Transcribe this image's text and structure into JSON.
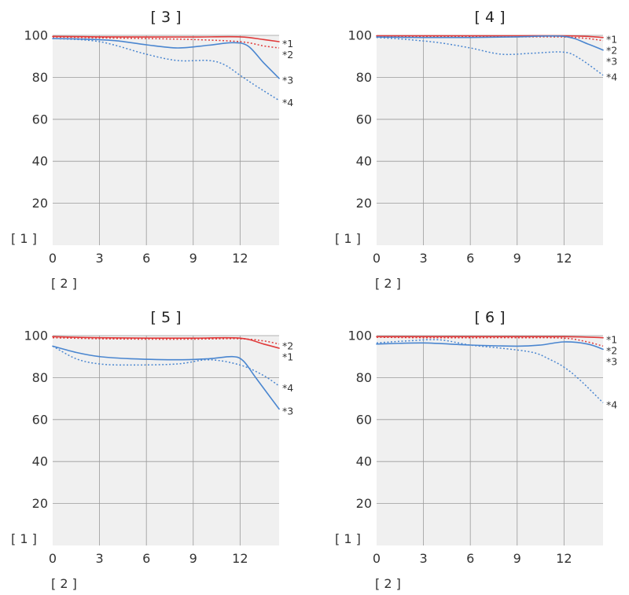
{
  "colors": {
    "red": "#e03a3a",
    "blue": "#4a86d0",
    "plot_bg": "#f0f0f0",
    "grid": "#9a9a9a"
  },
  "chart_data": [
    {
      "type": "line",
      "title": "[ 3 ]",
      "xlabel": "[ 2 ]",
      "ylabel": "[ 1 ]",
      "xlim": [
        0,
        14.5
      ],
      "ylim": [
        0,
        100
      ],
      "xticks": [
        "0",
        "3",
        "6",
        "9",
        "12"
      ],
      "yticks": [
        "20",
        "40",
        "60",
        "80",
        "100"
      ],
      "grid": true,
      "series": [
        {
          "name": "*1",
          "color": "#e03a3a",
          "style": "solid",
          "x": [
            0,
            3,
            6,
            9,
            12,
            13.5,
            14.5
          ],
          "y": [
            99.5,
            99.3,
            99.2,
            99.2,
            99.3,
            98,
            97
          ]
        },
        {
          "name": "*2",
          "color": "#e03a3a",
          "style": "dotted",
          "x": [
            0,
            3,
            6,
            9,
            12,
            13.5,
            14.5
          ],
          "y": [
            99.2,
            98.8,
            98.5,
            98,
            97,
            95,
            94
          ]
        },
        {
          "name": "*3",
          "color": "#4a86d0",
          "style": "solid",
          "x": [
            0,
            2,
            4,
            6,
            8,
            10,
            11.5,
            12.5,
            13.5,
            14.5
          ],
          "y": [
            98.5,
            98.2,
            97.5,
            95.5,
            94,
            95.3,
            96.5,
            95,
            87,
            79.5
          ]
        },
        {
          "name": "*4",
          "color": "#4a86d0",
          "style": "dotted",
          "x": [
            0,
            3,
            6,
            8,
            10,
            11,
            12,
            13,
            14.5
          ],
          "y": [
            98.5,
            97,
            91,
            88,
            88,
            86,
            81,
            76,
            69
          ]
        }
      ]
    },
    {
      "type": "line",
      "title": "[ 4 ]",
      "xlabel": "[ 2 ]",
      "ylabel": "[ 1 ]",
      "xlim": [
        0,
        14.5
      ],
      "ylim": [
        0,
        100
      ],
      "xticks": [
        "0",
        "3",
        "6",
        "9",
        "12"
      ],
      "yticks": [
        "20",
        "40",
        "60",
        "80",
        "100"
      ],
      "grid": true,
      "series": [
        {
          "name": "*1",
          "color": "#e03a3a",
          "style": "solid",
          "x": [
            0,
            3,
            6,
            9,
            12,
            13.5,
            14.5
          ],
          "y": [
            99.8,
            99.8,
            99.8,
            99.8,
            99.8,
            99.5,
            99
          ]
        },
        {
          "name": "*2",
          "color": "#e03a3a",
          "style": "dotted",
          "x": [
            0,
            3,
            6,
            9,
            12,
            13.5,
            14.5
          ],
          "y": [
            99.5,
            99.5,
            99.4,
            99.3,
            99.2,
            98.5,
            97.5
          ]
        },
        {
          "name": "*3",
          "color": "#4a86d0",
          "style": "solid",
          "x": [
            0,
            3,
            6,
            9,
            12,
            13.5,
            14.5
          ],
          "y": [
            99.2,
            99,
            99,
            99.3,
            99.5,
            96,
            93
          ]
        },
        {
          "name": "*4",
          "color": "#4a86d0",
          "style": "dotted",
          "x": [
            0,
            2,
            4,
            6,
            8,
            10,
            12,
            13,
            14.5
          ],
          "y": [
            99,
            98,
            96.5,
            94,
            91,
            91.5,
            92,
            89,
            81
          ]
        }
      ]
    },
    {
      "type": "line",
      "title": "[ 5 ]",
      "xlabel": "[ 2 ]",
      "ylabel": "[ 1 ]",
      "xlim": [
        0,
        14.5
      ],
      "ylim": [
        0,
        100
      ],
      "xticks": [
        "0",
        "3",
        "6",
        "9",
        "12"
      ],
      "yticks": [
        "20",
        "40",
        "60",
        "80",
        "100"
      ],
      "grid": true,
      "series": [
        {
          "name": "*1",
          "color": "#e03a3a",
          "style": "solid",
          "x": [
            0,
            3,
            6,
            9,
            12,
            13.5,
            14.5
          ],
          "y": [
            99.5,
            99,
            98.8,
            98.8,
            98.8,
            96,
            94
          ]
        },
        {
          "name": "*2",
          "color": "#e03a3a",
          "style": "dotted",
          "x": [
            0,
            3,
            6,
            9,
            12,
            13.5,
            14.5
          ],
          "y": [
            99,
            98.5,
            98.3,
            98.3,
            98.5,
            97.5,
            96
          ]
        },
        {
          "name": "*3",
          "color": "#4a86d0",
          "style": "solid",
          "x": [
            0,
            1.5,
            3,
            5,
            8,
            10,
            11.5,
            12.2,
            13,
            14.5
          ],
          "y": [
            95,
            92,
            90,
            89,
            88.5,
            89,
            90,
            88,
            80,
            65
          ]
        },
        {
          "name": "*4",
          "color": "#4a86d0",
          "style": "dotted",
          "x": [
            0,
            1.5,
            3,
            5,
            8,
            10,
            12,
            13.5,
            14.5
          ],
          "y": [
            95,
            89,
            86.5,
            86,
            86.5,
            88.5,
            86,
            81,
            76
          ]
        }
      ]
    },
    {
      "type": "line",
      "title": "[ 6 ]",
      "xlabel": "[ 2 ]",
      "ylabel": "[ 1 ]",
      "xlim": [
        0,
        14.5
      ],
      "ylim": [
        0,
        100
      ],
      "xticks": [
        "0",
        "3",
        "6",
        "9",
        "12"
      ],
      "yticks": [
        "20",
        "40",
        "60",
        "80",
        "100"
      ],
      "grid": true,
      "series": [
        {
          "name": "*1",
          "color": "#e03a3a",
          "style": "solid",
          "x": [
            0,
            3,
            6,
            9,
            12,
            13.5,
            14.5
          ],
          "y": [
            99.5,
            99.5,
            99.5,
            99.5,
            99.5,
            99.3,
            99
          ]
        },
        {
          "name": "*2",
          "color": "#e03a3a",
          "style": "dotted",
          "x": [
            0,
            3,
            6,
            9,
            12,
            13.5,
            14.5
          ],
          "y": [
            99.2,
            99,
            99,
            99,
            98.8,
            97,
            95
          ]
        },
        {
          "name": "*3",
          "color": "#4a86d0",
          "style": "solid",
          "x": [
            0,
            3,
            6,
            9,
            10.5,
            12,
            13.5,
            14.5
          ],
          "y": [
            96,
            96.5,
            95.5,
            95,
            95.5,
            97,
            96,
            93.5
          ]
        },
        {
          "name": "*4",
          "color": "#4a86d0",
          "style": "dotted",
          "x": [
            0,
            2,
            4,
            6,
            8,
            10,
            11,
            12,
            13,
            14.5
          ],
          "y": [
            96.5,
            97.5,
            98,
            95.5,
            94,
            92,
            89,
            85,
            79,
            68
          ]
        }
      ]
    }
  ]
}
